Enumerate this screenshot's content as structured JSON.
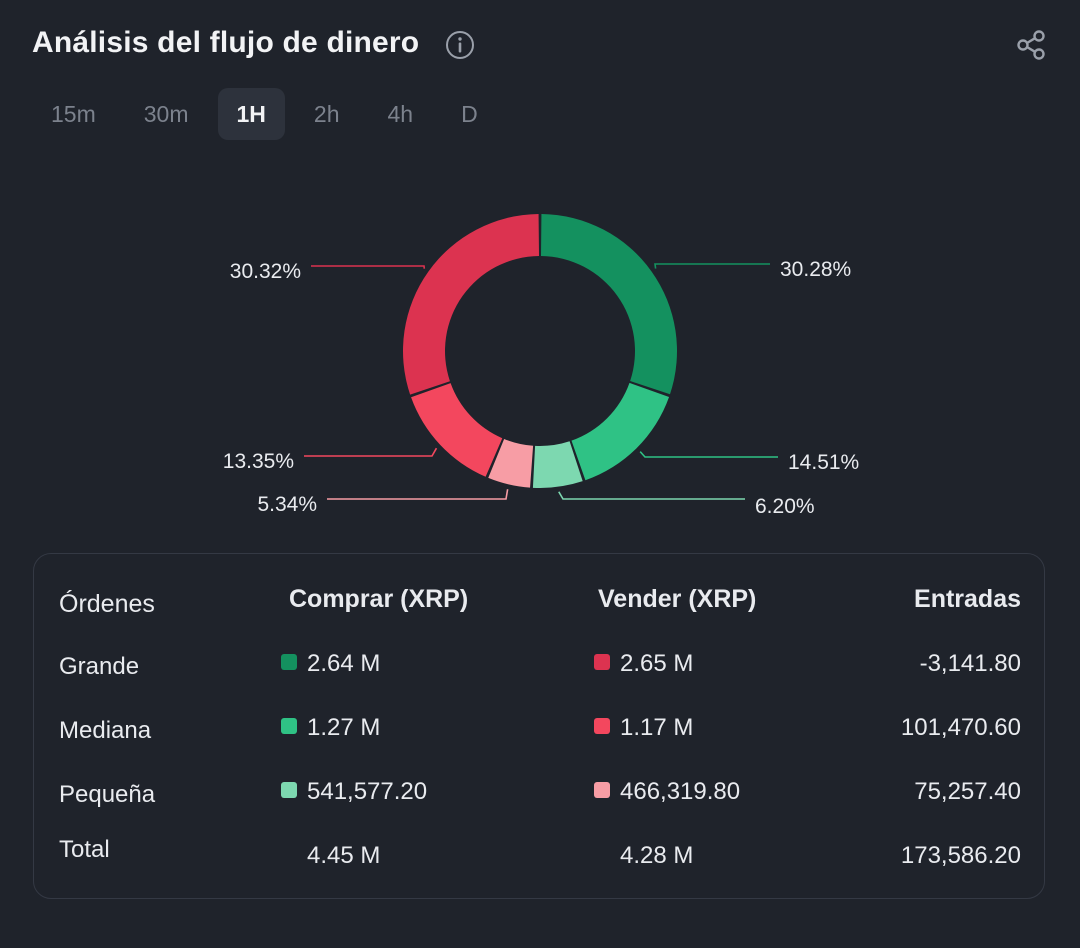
{
  "header": {
    "title": "Análisis del flujo de dinero",
    "info_icon": "info-icon",
    "share_icon": "share-icon"
  },
  "tabs": [
    {
      "label": "15m",
      "active": false
    },
    {
      "label": "30m",
      "active": false
    },
    {
      "label": "1H",
      "active": true
    },
    {
      "label": "2h",
      "active": false
    },
    {
      "label": "4h",
      "active": false
    },
    {
      "label": "D",
      "active": false
    }
  ],
  "colors": {
    "buy_large": "#14915f",
    "buy_medium": "#2fc285",
    "buy_small": "#7dd8b0",
    "sell_large": "#dc3350",
    "sell_medium": "#f3475e",
    "sell_small": "#f79da5"
  },
  "chart_data": {
    "type": "pie",
    "style": "donut",
    "slices": [
      {
        "label": "30.28%",
        "value": 30.28,
        "color": "#14915f"
      },
      {
        "label": "14.51%",
        "value": 14.51,
        "color": "#2fc285"
      },
      {
        "label": "6.20%",
        "value": 6.2,
        "color": "#7dd8b0"
      },
      {
        "label": "5.34%",
        "value": 5.34,
        "color": "#f79da5"
      },
      {
        "label": "13.35%",
        "value": 13.35,
        "color": "#f3475e"
      },
      {
        "label": "30.32%",
        "value": 30.32,
        "color": "#dc3350"
      }
    ]
  },
  "table": {
    "headers": {
      "orders": "Órdenes",
      "buy": "Comprar (XRP)",
      "sell": "Vender (XRP)",
      "inflow": "Entradas"
    },
    "rows": [
      {
        "label": "Grande",
        "buy": "2.64 M",
        "sell": "2.65 M",
        "inflow": "-3,141.80"
      },
      {
        "label": "Mediana",
        "buy": "1.27 M",
        "sell": "1.17 M",
        "inflow": "101,470.60"
      },
      {
        "label": "Pequeña",
        "buy": "541,577.20",
        "sell": "466,319.80",
        "inflow": "75,257.40"
      }
    ],
    "total": {
      "label": "Total",
      "buy": "4.45 M",
      "sell": "4.28 M",
      "inflow": "173,586.20"
    }
  }
}
